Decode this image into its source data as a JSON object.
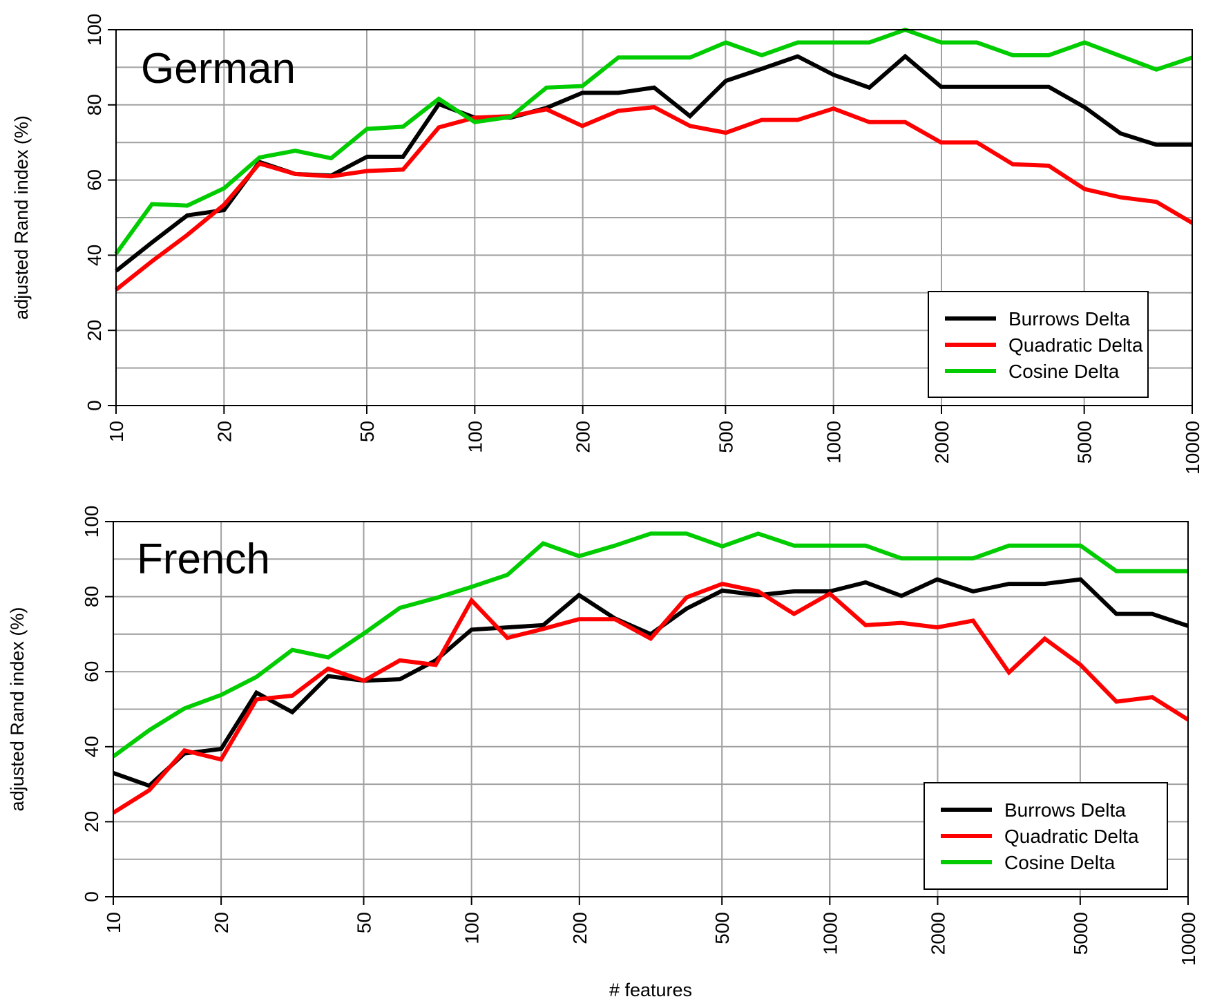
{
  "chart_data": [
    {
      "type": "line",
      "title": "German",
      "xlabel": "",
      "ylabel": "adjusted Rand index (%)",
      "x_scale": "log",
      "xlim": [
        10,
        10000
      ],
      "ylim": [
        0,
        100
      ],
      "grid": true,
      "legend_position": "bottom-right",
      "x_ticks": [
        "10",
        "20",
        "50",
        "100",
        "200",
        "500",
        "1000",
        "2000",
        "5000",
        "10000"
      ],
      "y_ticks": [
        "0",
        "20",
        "40",
        "60",
        "80",
        "100"
      ],
      "x": [
        10,
        12.6,
        15.8,
        20,
        25.1,
        31.6,
        39.8,
        50.1,
        63.1,
        79.4,
        100,
        125.9,
        158.5,
        199.5,
        251.2,
        316.2,
        398.1,
        501.2,
        631,
        794.3,
        1000,
        1258.9,
        1584.9,
        1995.3,
        2511.9,
        3162.3,
        3981.1,
        5011.9,
        6309.6,
        7943.3,
        10000
      ],
      "series": [
        {
          "name": "Burrows Delta",
          "color": "#000000",
          "values": [
            35.8,
            43.4,
            50.6,
            52.0,
            64.8,
            61.6,
            61.2,
            66.2,
            66.2,
            80.2,
            76.6,
            76.6,
            79.2,
            83.2,
            83.2,
            84.6,
            77.0,
            86.4,
            89.6,
            92.9,
            88.0,
            84.6,
            92.9,
            84.8,
            84.8,
            84.8,
            84.8,
            79.4,
            72.4,
            69.4,
            69.4
          ]
        },
        {
          "name": "Quadratic Delta",
          "color": "#ff0000",
          "values": [
            30.8,
            38.4,
            45.4,
            53.4,
            64.4,
            61.6,
            61.0,
            62.4,
            62.8,
            74.0,
            76.6,
            77.0,
            78.8,
            74.4,
            78.4,
            79.4,
            74.4,
            72.6,
            76.0,
            76.0,
            79.0,
            75.4,
            75.4,
            70.0,
            70.0,
            64.2,
            63.8,
            57.6,
            55.4,
            54.2,
            48.6
          ]
        },
        {
          "name": "Cosine Delta",
          "color": "#00cc00",
          "values": [
            40.4,
            53.6,
            53.2,
            57.8,
            66.0,
            67.8,
            65.8,
            73.6,
            74.2,
            81.6,
            75.4,
            76.8,
            84.6,
            85.0,
            92.6,
            92.6,
            92.6,
            96.6,
            93.2,
            96.6,
            96.6,
            96.6,
            100.0,
            96.6,
            96.6,
            93.2,
            93.2,
            96.6,
            93.0,
            89.4,
            92.6
          ]
        }
      ]
    },
    {
      "type": "line",
      "title": "French",
      "xlabel": "# features",
      "ylabel": "adjusted Rand index (%)",
      "x_scale": "log",
      "xlim": [
        10,
        10000
      ],
      "ylim": [
        0,
        100
      ],
      "grid": true,
      "legend_position": "bottom-right",
      "x_ticks": [
        "10",
        "20",
        "50",
        "100",
        "200",
        "500",
        "1000",
        "2000",
        "5000",
        "10000"
      ],
      "y_ticks": [
        "0",
        "20",
        "40",
        "60",
        "80",
        "100"
      ],
      "x": [
        10,
        12.6,
        15.8,
        20,
        25.1,
        31.6,
        39.8,
        50.1,
        63.1,
        79.4,
        100,
        125.9,
        158.5,
        199.5,
        251.2,
        316.2,
        398.1,
        501.2,
        631,
        794.3,
        1000,
        1258.9,
        1584.9,
        1995.3,
        2511.9,
        3162.3,
        3981.1,
        5011.9,
        6309.6,
        7943.3,
        10000
      ],
      "series": [
        {
          "name": "Burrows Delta",
          "color": "#000000",
          "values": [
            33.0,
            29.6,
            38.2,
            39.4,
            54.4,
            49.2,
            58.8,
            57.6,
            58.0,
            63.0,
            71.2,
            71.8,
            72.4,
            80.4,
            74.2,
            70.0,
            76.8,
            81.6,
            80.4,
            81.4,
            81.4,
            83.8,
            80.2,
            84.6,
            81.4,
            83.4,
            83.4,
            84.6,
            75.4,
            75.4,
            72.2
          ]
        },
        {
          "name": "Quadratic Delta",
          "color": "#ff0000",
          "values": [
            22.4,
            28.4,
            39.0,
            36.6,
            52.6,
            53.6,
            60.8,
            57.6,
            63.0,
            61.8,
            79.0,
            69.0,
            71.4,
            74.0,
            74.0,
            68.8,
            79.8,
            83.4,
            81.4,
            75.4,
            80.8,
            72.4,
            73.0,
            71.8,
            73.6,
            59.8,
            68.8,
            61.8,
            52.0,
            53.2,
            47.2
          ]
        },
        {
          "name": "Cosine Delta",
          "color": "#00cc00",
          "values": [
            37.4,
            44.4,
            50.2,
            53.8,
            58.6,
            65.8,
            63.8,
            70.2,
            77.0,
            79.6,
            82.6,
            85.8,
            94.2,
            90.8,
            93.6,
            96.8,
            96.8,
            93.4,
            96.8,
            93.6,
            93.6,
            93.6,
            90.2,
            90.2,
            90.2,
            93.6,
            93.6,
            93.6,
            86.8,
            86.8,
            86.8
          ]
        }
      ]
    }
  ]
}
